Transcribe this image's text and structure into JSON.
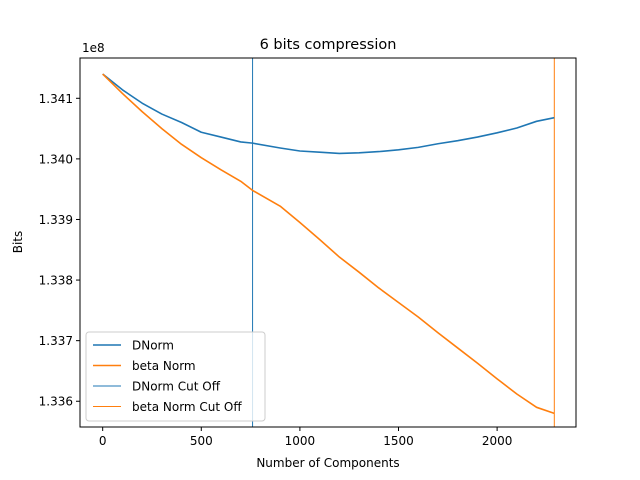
{
  "chart_data": {
    "type": "line",
    "title": "6 bits compression",
    "xlabel": "Number of Components",
    "ylabel": "Bits",
    "offset_text": "1e8",
    "xlim": [
      -115,
      2400
    ],
    "ylim": [
      133.5575,
      134.1665
    ],
    "y_scale_note": "y values in units of 1e6 bits (axis multiplier 1e8 printed above axis)",
    "x_ticks": [
      0,
      500,
      1000,
      1500,
      2000
    ],
    "x_tick_labels": [
      "0",
      "500",
      "1000",
      "1500",
      "2000"
    ],
    "y_ticks": [
      133.6,
      133.7,
      133.8,
      133.9,
      134.0,
      134.1
    ],
    "y_tick_labels": [
      "1.336",
      "1.337",
      "1.338",
      "1.339",
      "1.340",
      "1.341"
    ],
    "grid": false,
    "legend_position": "lower-left",
    "series": [
      {
        "name": "DNorm",
        "color": "#1f77b4",
        "x": [
          0,
          100,
          200,
          300,
          400,
          500,
          600,
          700,
          760,
          900,
          1000,
          1100,
          1200,
          1300,
          1400,
          1500,
          1600,
          1700,
          1800,
          1900,
          2000,
          2100,
          2200,
          2290
        ],
        "y": [
          134.14,
          134.114,
          134.092,
          134.074,
          134.06,
          134.044,
          134.036,
          134.028,
          134.026,
          134.018,
          134.013,
          134.011,
          134.009,
          134.01,
          134.012,
          134.015,
          134.019,
          134.025,
          134.03,
          134.036,
          134.043,
          134.051,
          134.062,
          134.068
        ]
      },
      {
        "name": "beta Norm",
        "color": "#ff7f0e",
        "x": [
          0,
          100,
          200,
          300,
          400,
          500,
          600,
          700,
          760,
          900,
          1000,
          1100,
          1200,
          1300,
          1400,
          1500,
          1600,
          1700,
          1800,
          1900,
          2000,
          2100,
          2200,
          2290
        ],
        "y": [
          134.14,
          134.108,
          134.078,
          134.05,
          134.024,
          134.002,
          133.982,
          133.963,
          133.948,
          133.922,
          133.895,
          133.867,
          133.838,
          133.813,
          133.787,
          133.763,
          133.739,
          133.713,
          133.688,
          133.663,
          133.637,
          133.612,
          133.59,
          133.58
        ]
      }
    ],
    "cutoffs": [
      {
        "name": "DNorm Cut Off",
        "x": 760,
        "color": "#1f77b4"
      },
      {
        "name": "beta Norm Cut Off",
        "x": 2290,
        "color": "#ff7f0e"
      }
    ]
  }
}
